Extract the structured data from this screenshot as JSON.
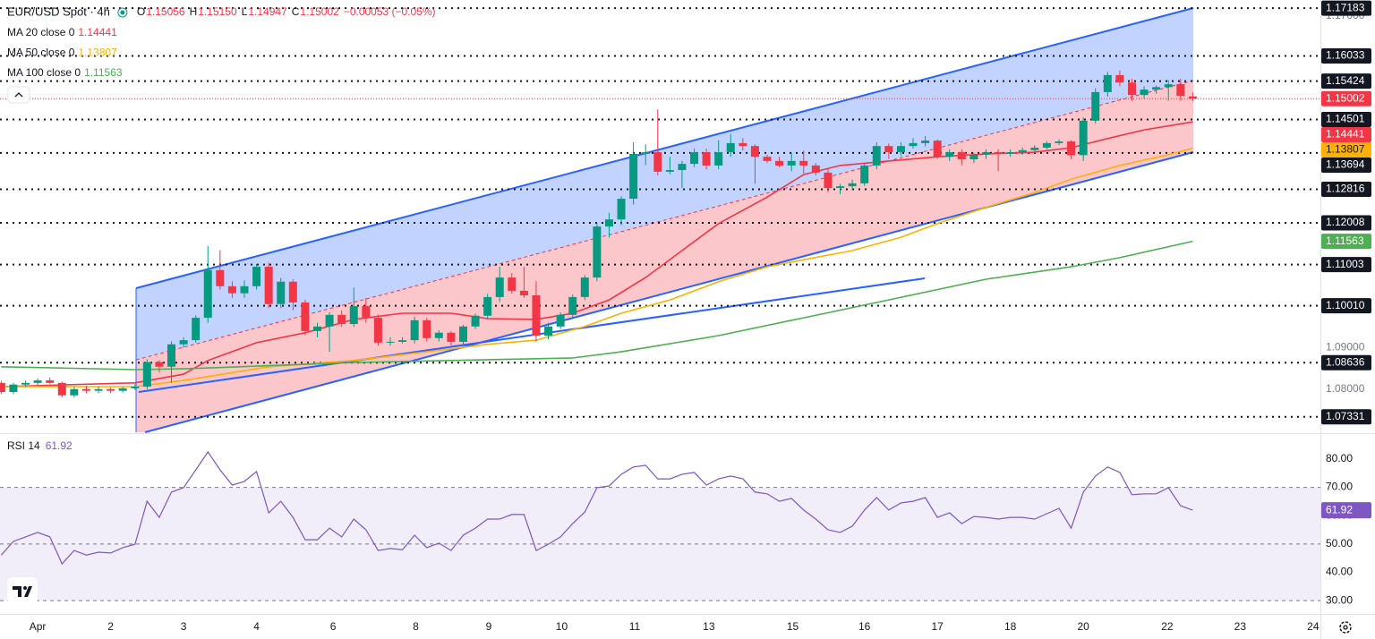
{
  "chart_data": [
    {
      "type": "candlestick",
      "title": "EUR/USD Spot · 4h",
      "ohlc": [
        [
          "O",
          "1.15056"
        ],
        [
          "H",
          "1.15150"
        ],
        [
          "L",
          "1.14947"
        ],
        [
          "C",
          "1.15002"
        ]
      ],
      "change": "−0.00053 (−0.05%)",
      "up_color": "#089981",
      "down_color": "#f23645",
      "x": [
        -3,
        -2,
        -1,
        0,
        1,
        2,
        3,
        4,
        5,
        6,
        7,
        8,
        9,
        10,
        11,
        12,
        13,
        14,
        15,
        16,
        17,
        18,
        19,
        20,
        21,
        22,
        23,
        24,
        25,
        26,
        27,
        28,
        29,
        30,
        31,
        32,
        33,
        34,
        35,
        36,
        37,
        38,
        39,
        40,
        41,
        42,
        43,
        44,
        45,
        46,
        47,
        48,
        49,
        50,
        51,
        52,
        53,
        54,
        55,
        56,
        57,
        58,
        59,
        60,
        61,
        62,
        63,
        64,
        65,
        66,
        67,
        68,
        69,
        70,
        71,
        72,
        73,
        74,
        75,
        76,
        77,
        78,
        79,
        80,
        81,
        82,
        83,
        84,
        85,
        86,
        87,
        88,
        89,
        90,
        91,
        92,
        93,
        94,
        95
      ],
      "open": [
        1.0815,
        1.0793,
        1.0811,
        1.0815,
        1.0821,
        1.0815,
        1.0785,
        1.08,
        1.0796,
        1.08,
        1.0796,
        1.0802,
        1.0806,
        1.0865,
        1.0854,
        1.0908,
        1.0918,
        1.0972,
        1.1087,
        1.1048,
        1.1031,
        1.1048,
        1.1095,
        1.1005,
        1.1059,
        1.1009,
        1.094,
        1.0951,
        1.0979,
        1.0957,
        1.1,
        1.0972,
        1.0912,
        1.0914,
        1.0918,
        1.0966,
        1.0923,
        1.0936,
        1.0914,
        1.0951,
        1.0977,
        1.1022,
        1.1069,
        1.1037,
        1.1026,
        1.0929,
        1.0951,
        1.0979,
        1.1022,
        1.1069,
        1.1192,
        1.1209,
        1.1259,
        1.1367,
        1.1371,
        1.1324,
        1.1328,
        1.1343,
        1.1371,
        1.1339,
        1.1371,
        1.1393,
        1.1386,
        1.136,
        1.135,
        1.1339,
        1.135,
        1.1339,
        1.1322,
        1.1285,
        1.1289,
        1.1296,
        1.1339,
        1.1386,
        1.1371,
        1.1386,
        1.1393,
        1.1399,
        1.136,
        1.1371,
        1.1354,
        1.1365,
        1.1371,
        1.1367,
        1.1371,
        1.1376,
        1.1382,
        1.1393,
        1.1397,
        1.1364,
        1.1447,
        1.1516,
        1.1557,
        1.1539,
        1.1509,
        1.1522,
        1.1528,
        1.1535,
        1.15056
      ],
      "high": [
        1.082,
        1.0815,
        1.082,
        1.0826,
        1.0828,
        1.0818,
        1.0806,
        1.0808,
        1.0806,
        1.0804,
        1.0806,
        1.0812,
        1.0872,
        1.087,
        1.0915,
        1.0925,
        1.0978,
        1.1145,
        1.1135,
        1.106,
        1.1062,
        1.1102,
        1.1105,
        1.1068,
        1.1065,
        1.1015,
        1.096,
        1.0985,
        1.099,
        1.1045,
        1.102,
        1.098,
        1.0925,
        1.0925,
        1.0975,
        1.0972,
        1.0942,
        1.094,
        1.0955,
        1.0982,
        1.103,
        1.1095,
        1.108,
        1.1095,
        1.106,
        1.096,
        1.0985,
        1.1028,
        1.1075,
        1.12,
        1.1225,
        1.1265,
        1.1395,
        1.139,
        1.1474,
        1.136,
        1.135,
        1.138,
        1.138,
        1.14,
        1.1415,
        1.1405,
        1.139,
        1.1365,
        1.136,
        1.137,
        1.1375,
        1.1345,
        1.133,
        1.1295,
        1.1305,
        1.1345,
        1.1395,
        1.1392,
        1.1395,
        1.1405,
        1.141,
        1.1402,
        1.1378,
        1.1378,
        1.137,
        1.1378,
        1.1378,
        1.1378,
        1.1382,
        1.1388,
        1.1398,
        1.1402,
        1.14,
        1.1455,
        1.1525,
        1.1565,
        1.1568,
        1.1548,
        1.153,
        1.1532,
        1.1545,
        1.1548,
        1.1515
      ],
      "low": [
        1.0788,
        1.0788,
        1.0805,
        1.081,
        1.0812,
        1.078,
        1.078,
        1.079,
        1.079,
        1.079,
        1.0792,
        1.0798,
        1.08,
        1.084,
        1.0815,
        1.09,
        1.0912,
        1.096,
        1.104,
        1.102,
        1.102,
        1.104,
        1.0995,
        1.0995,
        1.099,
        1.093,
        1.0925,
        1.089,
        1.095,
        1.095,
        1.096,
        1.0905,
        1.0905,
        1.091,
        1.091,
        1.0915,
        1.0915,
        1.0905,
        1.0905,
        1.0945,
        1.097,
        1.101,
        1.103,
        1.102,
        1.0915,
        1.092,
        1.0945,
        1.097,
        1.1015,
        1.106,
        1.1165,
        1.1195,
        1.1245,
        1.134,
        1.1315,
        1.1318,
        1.1285,
        1.1335,
        1.133,
        1.133,
        1.136,
        1.1375,
        1.1295,
        1.1345,
        1.1335,
        1.1325,
        1.132,
        1.1315,
        1.1275,
        1.127,
        1.128,
        1.129,
        1.133,
        1.1355,
        1.1362,
        1.138,
        1.1385,
        1.1355,
        1.135,
        1.134,
        1.1345,
        1.1355,
        1.1325,
        1.136,
        1.1365,
        1.137,
        1.1378,
        1.1388,
        1.1355,
        1.135,
        1.144,
        1.1505,
        1.153,
        1.1495,
        1.15,
        1.1512,
        1.1495,
        1.1495,
        1.14947
      ],
      "close": [
        1.0793,
        1.0811,
        1.0815,
        1.0821,
        1.0815,
        1.0785,
        1.08,
        1.0796,
        1.08,
        1.0796,
        1.0802,
        1.0806,
        1.0865,
        1.0854,
        1.0908,
        1.0918,
        1.0972,
        1.1087,
        1.1048,
        1.1031,
        1.1048,
        1.1095,
        1.1005,
        1.1059,
        1.1009,
        1.094,
        1.0951,
        1.0979,
        1.0957,
        1.1,
        1.0972,
        1.0912,
        1.0914,
        1.0918,
        1.0966,
        1.0923,
        1.0936,
        1.0914,
        1.0951,
        1.0977,
        1.1022,
        1.1069,
        1.1037,
        1.1026,
        1.0929,
        1.0951,
        1.0979,
        1.1022,
        1.1069,
        1.1192,
        1.1209,
        1.1259,
        1.1367,
        1.1371,
        1.1324,
        1.1328,
        1.1343,
        1.1371,
        1.1339,
        1.1371,
        1.1393,
        1.1386,
        1.136,
        1.135,
        1.1339,
        1.135,
        1.1339,
        1.1322,
        1.1285,
        1.1289,
        1.1296,
        1.1339,
        1.1386,
        1.1371,
        1.1386,
        1.1393,
        1.1399,
        1.136,
        1.1371,
        1.1354,
        1.1365,
        1.1371,
        1.1367,
        1.1371,
        1.1376,
        1.1382,
        1.1393,
        1.1397,
        1.1364,
        1.1447,
        1.1516,
        1.1557,
        1.1539,
        1.1509,
        1.1522,
        1.1528,
        1.1535,
        1.1507,
        1.15002
      ],
      "series": [
        {
          "name": "MA 20 close 0",
          "color": "#f23645",
          "x": [
            -3,
            8,
            12,
            14,
            18,
            22,
            26,
            30,
            34,
            37,
            41,
            44,
            47,
            50,
            53,
            56,
            60,
            63,
            66,
            70,
            74,
            78,
            82,
            85,
            88,
            91,
            95
          ],
          "values": [
            1.0806,
            1.0815,
            1.0836,
            1.0869,
            1.0912,
            1.0936,
            1.0968,
            1.0983,
            1.0983,
            1.097,
            1.0968,
            1.0983,
            1.1015,
            1.1069,
            1.1134,
            1.1199,
            1.1263,
            1.1317,
            1.1339,
            1.135,
            1.136,
            1.1367,
            1.1371,
            1.1382,
            1.1404,
            1.1425,
            1.14441
          ]
        },
        {
          "name": "MA 50 close 0",
          "color": "#ffb000",
          "x": [
            -3,
            8,
            12,
            19,
            26,
            34,
            37,
            41,
            45,
            48,
            52,
            56,
            60,
            63,
            67,
            71,
            74,
            78,
            82,
            85,
            89,
            93,
            95
          ],
          "values": [
            1.0806,
            1.0806,
            1.0821,
            1.0854,
            1.0869,
            1.0897,
            1.0908,
            1.0918,
            1.0951,
            1.0983,
            1.1015,
            1.1059,
            1.1095,
            1.1112,
            1.1134,
            1.1166,
            1.1199,
            1.1238,
            1.1274,
            1.1306,
            1.1339,
            1.1365,
            1.13807
          ]
        },
        {
          "name": "MA 100 close 0",
          "color": "#4caf50",
          "x": [
            -3,
            8,
            12,
            26,
            37,
            44,
            48,
            56,
            63,
            70,
            78,
            85,
            89,
            95
          ],
          "values": [
            1.0854,
            1.0847,
            1.0849,
            1.0864,
            1.0871,
            1.0875,
            1.089,
            1.0929,
            1.0972,
            1.1015,
            1.1065,
            1.1095,
            1.1117,
            1.11563
          ]
        }
      ],
      "levels": [
        1.17183,
        1.16033,
        1.15424,
        1.14501,
        1.13694,
        1.12816,
        1.12008,
        1.11003,
        {
          "value": 1.1001,
          "label": "1.10010"
        },
        1.08636,
        1.07331
      ],
      "level_color": "#131722",
      "xlim": [
        -3.1,
        105.5
      ],
      "ylim": [
        1.0696,
        1.1738
      ],
      "yticks": [
        {
          "value": 1.17,
          "label": "1.17000"
        },
        {
          "value": 1.12,
          "label": "1.12000"
        },
        {
          "value": 1.09,
          "label": "1.09000"
        },
        {
          "value": 1.08,
          "label": "1.08000"
        }
      ]
    },
    {
      "type": "line",
      "title": "RSI 14",
      "color": "#7e57c2",
      "x": [
        -3,
        -2,
        -1,
        0,
        1,
        2,
        3,
        4,
        5,
        6,
        7,
        8,
        9,
        10,
        11,
        12,
        13,
        14,
        15,
        16,
        17,
        18,
        19,
        20,
        21,
        22,
        23,
        24,
        25,
        26,
        27,
        28,
        29,
        30,
        31,
        32,
        33,
        34,
        35,
        36,
        37,
        38,
        39,
        40,
        41,
        42,
        43,
        44,
        45,
        46,
        47,
        48,
        49,
        50,
        51,
        52,
        53,
        54,
        55,
        56,
        57,
        58,
        59,
        60,
        61,
        62,
        63,
        64,
        65,
        66,
        67,
        68,
        69,
        70,
        71,
        72,
        73,
        74,
        75,
        76,
        77,
        78,
        79,
        80,
        81,
        82,
        83,
        84,
        85,
        86,
        87,
        88,
        89,
        90,
        91,
        92,
        93,
        94,
        95
      ],
      "values": [
        46.1,
        50.9,
        52.5,
        54.1,
        52.5,
        43.0,
        47.7,
        46.1,
        47.1,
        46.8,
        48.7,
        49.9,
        65.1,
        59.4,
        68.3,
        69.9,
        76.2,
        82.5,
        76.2,
        70.8,
        72.1,
        75.6,
        61.0,
        65.1,
        59.4,
        51.5,
        51.5,
        55.6,
        52.5,
        58.8,
        55.0,
        47.7,
        48.4,
        48.0,
        53.1,
        48.7,
        50.3,
        47.7,
        53.1,
        55.6,
        58.8,
        58.8,
        60.4,
        60.4,
        47.7,
        49.9,
        52.5,
        57.2,
        61.3,
        69.9,
        70.5,
        74.6,
        77.2,
        77.8,
        73.0,
        73.0,
        74.6,
        75.3,
        70.8,
        73.0,
        74.0,
        73.0,
        68.3,
        67.7,
        65.1,
        66.1,
        62.0,
        58.8,
        55.0,
        54.1,
        56.3,
        62.0,
        66.4,
        62.0,
        64.5,
        65.1,
        66.4,
        59.4,
        61.0,
        57.2,
        59.7,
        59.4,
        58.8,
        59.4,
        59.4,
        58.8,
        60.7,
        62.6,
        55.6,
        68.3,
        74.0,
        77.2,
        75.3,
        67.4,
        67.7,
        67.7,
        69.9,
        63.5,
        61.92
      ],
      "levels": [
        70,
        50,
        30
      ],
      "xlim": [
        -3.1,
        105.5
      ],
      "ylim": [
        25.6,
        88.2
      ],
      "yticks": [
        {
          "value": 80,
          "label": "80.00"
        },
        {
          "value": 70,
          "label": "70.00"
        },
        {
          "value": 60,
          "label": "60.00"
        },
        {
          "value": 50,
          "label": "50.00"
        },
        {
          "value": 40,
          "label": "40.00"
        },
        {
          "value": 30,
          "label": "30.00"
        }
      ],
      "xticks": [
        {
          "value": 0,
          "label": "Apr"
        },
        {
          "value": 6,
          "label": "2"
        },
        {
          "value": 12,
          "label": "3"
        },
        {
          "value": 18,
          "label": "4"
        },
        {
          "value": 24.3,
          "label": "6"
        },
        {
          "value": 31.1,
          "label": "8"
        },
        {
          "value": 37.1,
          "label": "9"
        },
        {
          "value": 43.1,
          "label": "10"
        },
        {
          "value": 49.1,
          "label": "11"
        },
        {
          "value": 55.2,
          "label": "13"
        },
        {
          "value": 62.1,
          "label": "15"
        },
        {
          "value": 68,
          "label": "16"
        },
        {
          "value": 74,
          "label": "17"
        },
        {
          "value": 80,
          "label": "18"
        },
        {
          "value": 86,
          "label": "20"
        },
        {
          "value": 92.9,
          "label": "22"
        },
        {
          "value": 98.9,
          "label": "23"
        },
        {
          "value": 104.9,
          "label": "24"
        }
      ]
    }
  ]
}
